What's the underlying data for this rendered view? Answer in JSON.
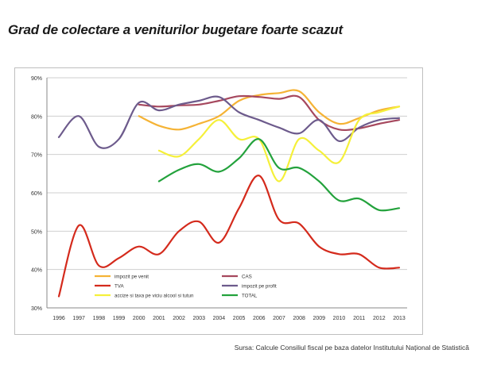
{
  "headline": "Grad de colectare a veniturilor bugetare foarte scazut",
  "source": "Sursa: Calcule Consiliul fiscal pe baza datelor Institutului Național de Statistică",
  "chart_data": {
    "type": "line",
    "x": [
      "1996",
      "1997",
      "1998",
      "1999",
      "2000",
      "2001",
      "2002",
      "2003",
      "2004",
      "2005",
      "2006",
      "2007",
      "2008",
      "2009",
      "2010",
      "2011",
      "2012",
      "2013"
    ],
    "ylim": [
      30,
      90
    ],
    "yticks": [
      "30%",
      "40%",
      "50%",
      "60%",
      "70%",
      "80%",
      "90%"
    ],
    "grid": true,
    "legend_position": "bottom-center",
    "series": [
      {
        "name": "impozit pe venit",
        "color": "#f5b335",
        "values": [
          null,
          null,
          null,
          null,
          80,
          77.5,
          76.5,
          78,
          80,
          84,
          85.5,
          86,
          86.5,
          81,
          78,
          79.5,
          81.5,
          82.5
        ]
      },
      {
        "name": "CAS",
        "color": "#a6485e",
        "values": [
          null,
          null,
          null,
          null,
          83,
          82.5,
          82.8,
          83,
          84,
          85.2,
          85,
          84.5,
          85,
          79,
          76.5,
          76.8,
          78,
          79
        ]
      },
      {
        "name": "TVA",
        "color": "#d42a1c",
        "values": [
          33,
          51.5,
          41,
          43,
          46,
          44,
          50,
          52.5,
          47,
          56,
          64.5,
          53,
          52,
          46,
          44,
          44,
          40.5,
          40.5
        ]
      },
      {
        "name": "impozit pe profit",
        "color": "#6d5b8c",
        "values": [
          74.5,
          80,
          72,
          74,
          83.5,
          81.5,
          83,
          84,
          85,
          81,
          79,
          77,
          75.5,
          79,
          73.5,
          77,
          79,
          79.5
        ]
      },
      {
        "name": "accize si taxa pe viciu alcool si tutun",
        "color": "#f5f03a",
        "values": [
          null,
          null,
          null,
          null,
          null,
          71,
          69.5,
          74,
          79,
          74,
          74,
          63,
          74,
          71,
          68,
          79,
          81,
          82.5
        ]
      },
      {
        "name": "TOTAL",
        "color": "#23a23c",
        "values": [
          null,
          null,
          null,
          null,
          null,
          63,
          66,
          67.5,
          65.5,
          69,
          74,
          66.5,
          66.5,
          63,
          58,
          58.5,
          55.5,
          56
        ]
      }
    ]
  }
}
